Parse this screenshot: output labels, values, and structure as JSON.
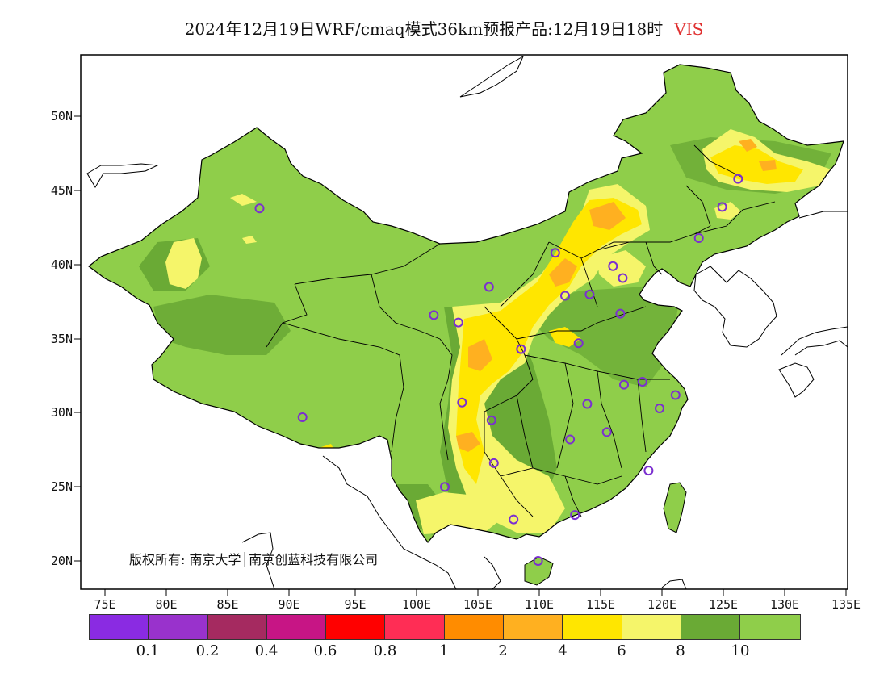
{
  "title": {
    "text": "2024年12月19日WRF/cmaq模式36km预报产品:12月19日18时",
    "variable": "VIS",
    "variable_color": "#e03030"
  },
  "copyright": "版权所有: 南京大学│南京创蓝科技有限公司",
  "axes": {
    "lat_labels": [
      "50N",
      "45N",
      "40N",
      "35N",
      "30N",
      "25N",
      "20N"
    ],
    "lon_labels": [
      "75E",
      "80E",
      "85E",
      "90E",
      "95E",
      "100E",
      "105E",
      "110E",
      "115E",
      "120E",
      "125E",
      "130E",
      "135E"
    ]
  },
  "legend": {
    "colors": [
      "#8a2be2",
      "#9932cc",
      "#a52a60",
      "#c71585",
      "#ff0000",
      "#ff2d55",
      "#ff8c00",
      "#ffb020",
      "#ffe600",
      "#f5f56a",
      "#6aaa35",
      "#8fce4a"
    ],
    "labels": [
      "0.1",
      "0.2",
      "0.4",
      "0.6",
      "0.8",
      "1",
      "2",
      "4",
      "6",
      "8",
      "10"
    ]
  },
  "map_colors": {
    "base": "#8fce4a",
    "dark_green": "#6aaa35",
    "light_yellow": "#f5f56a",
    "yellow": "#ffe600",
    "orange": "#ffb020",
    "station_marker": "#7b2fd0"
  },
  "stations": [
    {
      "lon": 87.6,
      "lat": 43.8
    },
    {
      "lon": 91.1,
      "lat": 29.7
    },
    {
      "lon": 101.8,
      "lat": 36.6
    },
    {
      "lon": 103.8,
      "lat": 36.1
    },
    {
      "lon": 106.3,
      "lat": 38.5
    },
    {
      "lon": 111.7,
      "lat": 40.8
    },
    {
      "lon": 112.5,
      "lat": 37.9
    },
    {
      "lon": 114.5,
      "lat": 38.0
    },
    {
      "lon": 116.4,
      "lat": 39.9
    },
    {
      "lon": 117.2,
      "lat": 39.1
    },
    {
      "lon": 117.0,
      "lat": 36.7
    },
    {
      "lon": 113.6,
      "lat": 34.7
    },
    {
      "lon": 108.9,
      "lat": 34.3
    },
    {
      "lon": 104.1,
      "lat": 30.7
    },
    {
      "lon": 106.5,
      "lat": 29.5
    },
    {
      "lon": 106.7,
      "lat": 26.6
    },
    {
      "lon": 102.7,
      "lat": 25.0
    },
    {
      "lon": 108.3,
      "lat": 22.8
    },
    {
      "lon": 113.3,
      "lat": 23.1
    },
    {
      "lon": 110.3,
      "lat": 20.0
    },
    {
      "lon": 119.3,
      "lat": 26.1
    },
    {
      "lon": 115.9,
      "lat": 28.7
    },
    {
      "lon": 112.9,
      "lat": 28.2
    },
    {
      "lon": 114.3,
      "lat": 30.6
    },
    {
      "lon": 117.3,
      "lat": 31.9
    },
    {
      "lon": 118.8,
      "lat": 32.1
    },
    {
      "lon": 120.2,
      "lat": 30.3
    },
    {
      "lon": 121.5,
      "lat": 31.2
    },
    {
      "lon": 123.4,
      "lat": 41.8
    },
    {
      "lon": 125.3,
      "lat": 43.9
    },
    {
      "lon": 126.6,
      "lat": 45.8
    }
  ]
}
